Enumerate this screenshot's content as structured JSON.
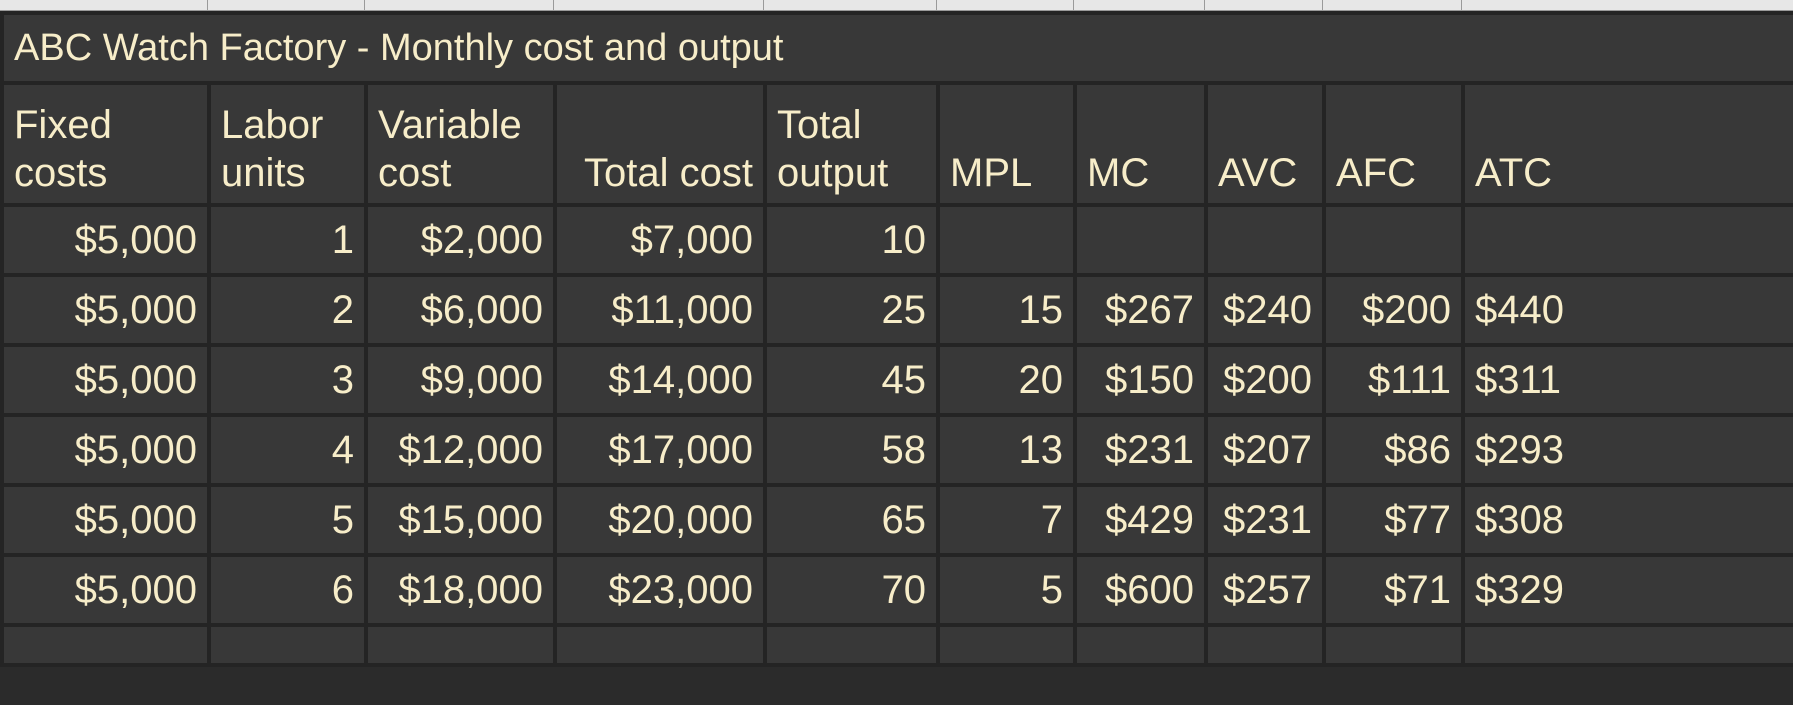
{
  "table": {
    "title": "ABC Watch Factory - Monthly cost and output",
    "headers": [
      [
        "Fixed",
        "costs"
      ],
      [
        "Labor",
        "units"
      ],
      [
        "Variable",
        "cost"
      ],
      [
        "",
        "Total cost"
      ],
      [
        "Total",
        "output"
      ],
      [
        "",
        "MPL"
      ],
      [
        "",
        "MC"
      ],
      [
        "",
        "AVC"
      ],
      [
        "",
        "AFC"
      ],
      [
        "",
        "ATC"
      ]
    ],
    "rows": [
      [
        "$5,000",
        "1",
        "$2,000",
        "$7,000",
        "10",
        "",
        "",
        "",
        "",
        ""
      ],
      [
        "$5,000",
        "2",
        "$6,000",
        "$11,000",
        "25",
        "15",
        "$267",
        "$240",
        "$200",
        "$440"
      ],
      [
        "$5,000",
        "3",
        "$9,000",
        "$14,000",
        "45",
        "20",
        "$150",
        "$200",
        "$111",
        "$311"
      ],
      [
        "$5,000",
        "4",
        "$12,000",
        "$17,000",
        "58",
        "13",
        "$231",
        "$207",
        "$86",
        "$293"
      ],
      [
        "$5,000",
        "5",
        "$15,000",
        "$20,000",
        "65",
        "7",
        "$429",
        "$231",
        "$77",
        "$308"
      ],
      [
        "$5,000",
        "6",
        "$18,000",
        "$23,000",
        "70",
        "5",
        "$600",
        "$257",
        "$71",
        "$329"
      ]
    ]
  }
}
